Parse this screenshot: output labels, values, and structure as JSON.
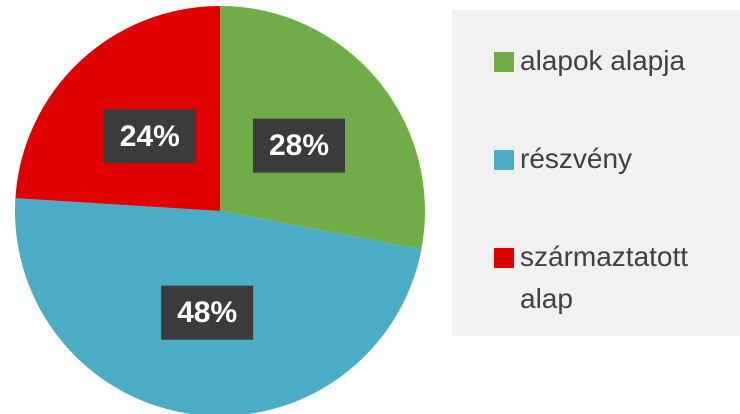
{
  "chart_data": {
    "type": "pie",
    "categories": [
      "alapok alapja",
      "részvény",
      "származtatott alap"
    ],
    "values": [
      28,
      48,
      24
    ],
    "value_labels": [
      "28%",
      "48%",
      "24%"
    ],
    "colors": [
      "#70ad47",
      "#4bacc6",
      "#e00000"
    ],
    "legend": "right"
  }
}
